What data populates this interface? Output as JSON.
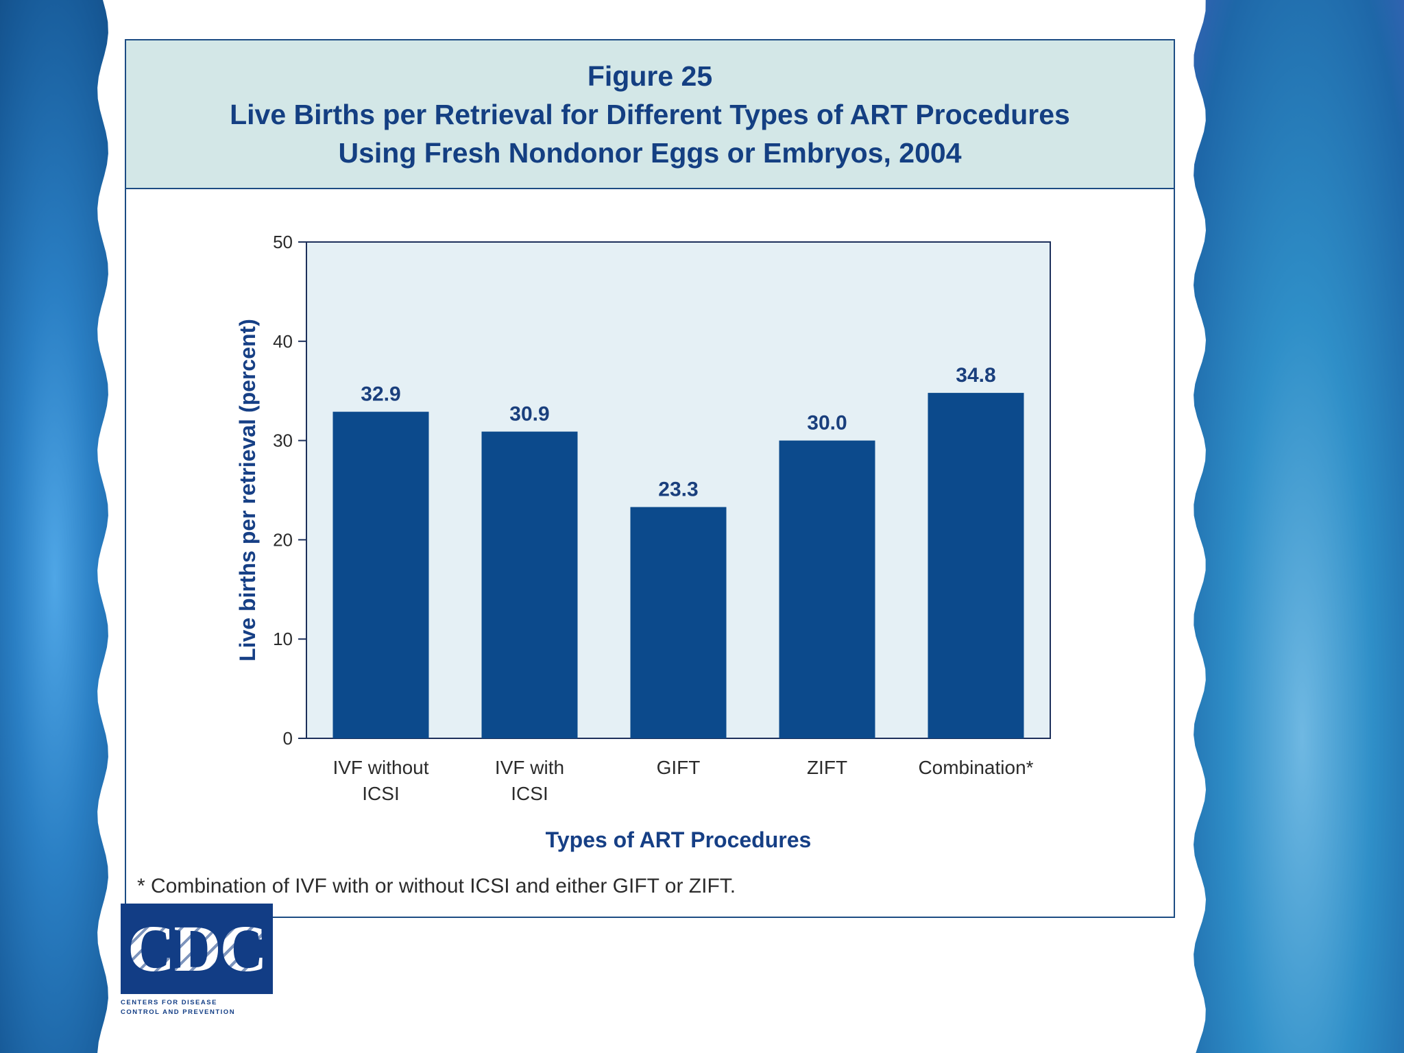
{
  "title": {
    "line1": "Figure 25",
    "line2": "Live Births per Retrieval for Different Types of ART Procedures",
    "line3": "Using Fresh Nondonor Eggs or Embryos, 2004"
  },
  "chart_data": {
    "type": "bar",
    "categories": [
      [
        "IVF without",
        "ICSI"
      ],
      [
        "IVF with",
        "ICSI"
      ],
      [
        "GIFT"
      ],
      [
        "ZIFT"
      ],
      [
        "Combination*"
      ]
    ],
    "values": [
      32.9,
      30.9,
      23.3,
      30.0,
      34.8
    ],
    "value_labels": [
      "32.9",
      "30.9",
      "23.3",
      "30.0",
      "34.8"
    ],
    "xlabel": "Types of ART Procedures",
    "ylabel": "Live births per retrieval (percent)",
    "ylim": [
      0,
      50
    ],
    "yticks": [
      0,
      10,
      20,
      30,
      40,
      50
    ],
    "bar_color": "#0c4a8c",
    "plot_bg": "#e5f0f5"
  },
  "footnote": "* Combination of IVF with or without ICSI and either GIFT or ZIFT.",
  "logo": {
    "text": "CDC",
    "tagline1": "Centers for Disease",
    "tagline2": "Control and Prevention"
  }
}
